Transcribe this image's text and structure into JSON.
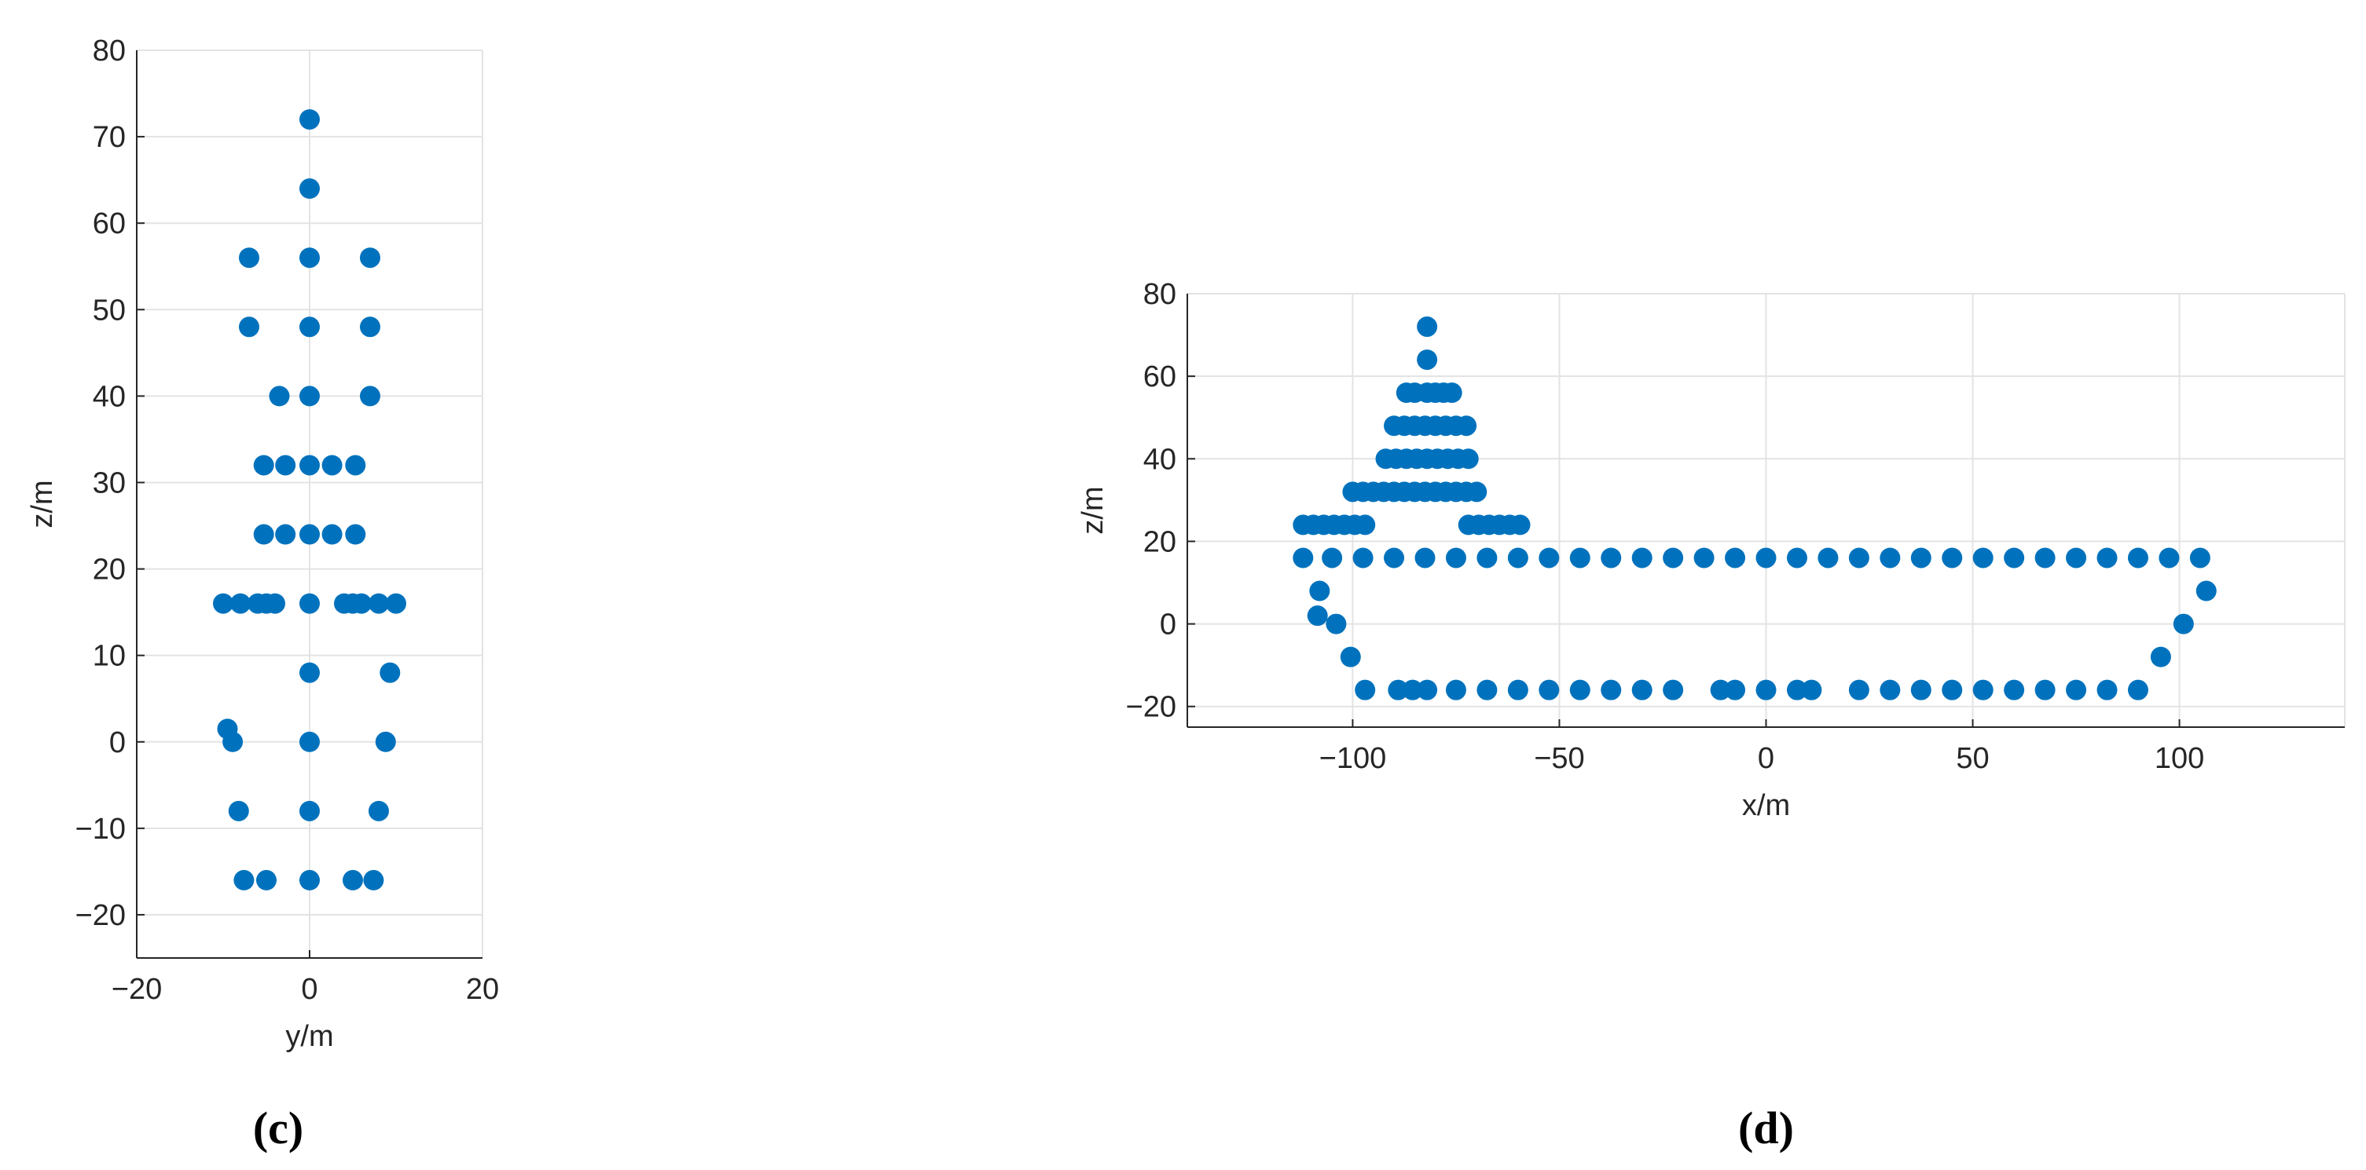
{
  "chart_data": [
    {
      "type": "scatter",
      "caption": "(c)",
      "x_label": "y/m",
      "y_label": "z/m",
      "color": "#0072BD",
      "grid": true,
      "xlim": [
        -20,
        20
      ],
      "ylim": [
        -25,
        80
      ],
      "xticks": [
        {
          "value": -20,
          "label": "−20"
        },
        0,
        20
      ],
      "yticks": [
        {
          "value": -20,
          "label": "−20"
        },
        {
          "value": -10,
          "label": "−10"
        },
        0,
        10,
        20,
        30,
        40,
        50,
        60,
        70,
        80
      ],
      "x": [
        0,
        0,
        -7,
        0,
        7,
        -7,
        0,
        7,
        -3.5,
        0,
        7,
        -5.3,
        -2.8,
        0,
        2.6,
        5.3,
        -5.3,
        -2.8,
        0,
        2.6,
        5.3,
        -10,
        -8,
        -6,
        -5,
        -4,
        0,
        4,
        5,
        6,
        8,
        10,
        0,
        9.3,
        -9.5,
        -8.9,
        0,
        8.8,
        -8.2,
        0,
        8,
        -7.6,
        -5,
        0,
        5,
        7.4
      ],
      "values": [
        72,
        64,
        56,
        56,
        56,
        48,
        48,
        48,
        40,
        40,
        40,
        32,
        32,
        32,
        32,
        32,
        24,
        24,
        24,
        24,
        24,
        16,
        16,
        16,
        16,
        16,
        16,
        16,
        16,
        16,
        16,
        16,
        8,
        8,
        1.5,
        0,
        0,
        0,
        -8,
        -8,
        -8,
        -16,
        -16,
        -16,
        -16,
        -16
      ]
    },
    {
      "type": "scatter",
      "caption": "(d)",
      "x_label": "x/m",
      "y_label": "z/m",
      "color": "#0072BD",
      "grid": true,
      "xlim": [
        -140,
        140
      ],
      "ylim": [
        -25,
        80
      ],
      "xticks": [
        {
          "value": -100,
          "label": "−100"
        },
        {
          "value": -50,
          "label": "−50"
        },
        0,
        50,
        100
      ],
      "yticks": [
        {
          "value": -20,
          "label": "−20"
        },
        0,
        20,
        40,
        60,
        80
      ],
      "x": [
        -82,
        -82,
        -87,
        -85,
        -82,
        -80,
        -78,
        -76,
        -90,
        -87.5,
        -85,
        -82.5,
        -80,
        -77.5,
        -75,
        -72.5,
        -92,
        -89.5,
        -87,
        -84.5,
        -82,
        -79.5,
        -77,
        -74.5,
        -72,
        -100,
        -97.5,
        -95,
        -92.5,
        -90,
        -87.5,
        -85,
        -82.5,
        -80,
        -77.5,
        -75,
        -72.5,
        -70,
        -112,
        -109.5,
        -107,
        -104.5,
        -102,
        -99.5,
        -97,
        -72,
        -69.5,
        -67,
        -64.5,
        -62,
        -59.5,
        -112,
        -105,
        -97.5,
        -90,
        -82.5,
        -75,
        -67.5,
        -60,
        -52.5,
        -45,
        -37.5,
        -30,
        -22.5,
        -15,
        -7.5,
        0,
        7.5,
        15,
        22.5,
        30,
        37.5,
        45,
        52.5,
        60,
        67.5,
        75,
        82.5,
        90,
        97.5,
        105,
        -108,
        106.5,
        -108.5,
        -104,
        101,
        -100.5,
        95.5,
        -97,
        -89,
        -85.5,
        -82,
        -75,
        -67.5,
        -60,
        -52.5,
        -45,
        -37.5,
        -30,
        -22.5,
        -11,
        -7.5,
        0,
        7.5,
        11,
        22.5,
        30,
        37.5,
        45,
        52.5,
        60,
        67.5,
        75,
        82.5,
        90
      ],
      "values": [
        72,
        64,
        56,
        56,
        56,
        56,
        56,
        56,
        48,
        48,
        48,
        48,
        48,
        48,
        48,
        48,
        40,
        40,
        40,
        40,
        40,
        40,
        40,
        40,
        40,
        32,
        32,
        32,
        32,
        32,
        32,
        32,
        32,
        32,
        32,
        32,
        32,
        32,
        24,
        24,
        24,
        24,
        24,
        24,
        24,
        24,
        24,
        24,
        24,
        24,
        24,
        16,
        16,
        16,
        16,
        16,
        16,
        16,
        16,
        16,
        16,
        16,
        16,
        16,
        16,
        16,
        16,
        16,
        16,
        16,
        16,
        16,
        16,
        16,
        16,
        16,
        16,
        16,
        16,
        16,
        16,
        8,
        8,
        2,
        0,
        0,
        -8,
        -8,
        -16,
        -16,
        -16,
        -16,
        -16,
        -16,
        -16,
        -16,
        -16,
        -16,
        -16,
        -16,
        -16,
        -16,
        -16,
        -16,
        -16,
        -16,
        -16,
        -16,
        -16,
        -16,
        -16,
        -16,
        -16,
        -16,
        -16
      ]
    }
  ]
}
